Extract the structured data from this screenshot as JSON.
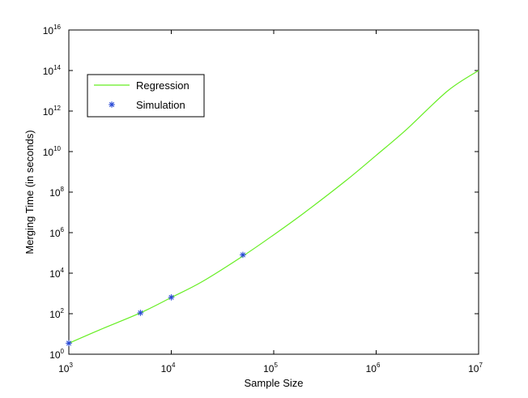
{
  "chart_data": {
    "type": "line",
    "xlabel": "Sample Size",
    "ylabel": "Merging Time (in seconds)",
    "xscale": "log",
    "yscale": "log",
    "xlim": [
      1000,
      10000000
    ],
    "ylim": [
      1,
      1e+16
    ],
    "x_ticks": [
      {
        "base": "10",
        "exp": "3",
        "value": 1000
      },
      {
        "base": "10",
        "exp": "4",
        "value": 10000
      },
      {
        "base": "10",
        "exp": "5",
        "value": 100000
      },
      {
        "base": "10",
        "exp": "6",
        "value": 1000000
      },
      {
        "base": "10",
        "exp": "7",
        "value": 10000000
      }
    ],
    "y_ticks": [
      {
        "base": "10",
        "exp": "0",
        "value": 1
      },
      {
        "base": "10",
        "exp": "2",
        "value": 100
      },
      {
        "base": "10",
        "exp": "4",
        "value": 10000
      },
      {
        "base": "10",
        "exp": "6",
        "value": 1000000
      },
      {
        "base": "10",
        "exp": "8",
        "value": 100000000
      },
      {
        "base": "10",
        "exp": "10",
        "value": 10000000000
      },
      {
        "base": "10",
        "exp": "12",
        "value": 1000000000000
      },
      {
        "base": "10",
        "exp": "14",
        "value": 100000000000000
      },
      {
        "base": "10",
        "exp": "16",
        "value": 1e+16
      }
    ],
    "grid": false,
    "legend_position": "top-left",
    "series": [
      {
        "name": "Regression",
        "kind": "line",
        "color": "#66ee22",
        "x": [
          1000,
          2000,
          5000,
          10000,
          20000,
          50000,
          100000,
          200000,
          500000,
          1000000,
          2000000,
          5000000,
          10000000
        ],
        "y": [
          3.5,
          16,
          110,
          630,
          3800,
          70000,
          780000,
          9800000,
          350000000,
          6500000000,
          130000000000,
          10000000000000,
          100000000000000
        ]
      },
      {
        "name": "Simulation",
        "kind": "scatter",
        "marker": "*",
        "color": "#2b4bd6",
        "x": [
          1000,
          5000,
          10000,
          50000
        ],
        "y": [
          3.5,
          110,
          640,
          80000
        ]
      }
    ]
  }
}
